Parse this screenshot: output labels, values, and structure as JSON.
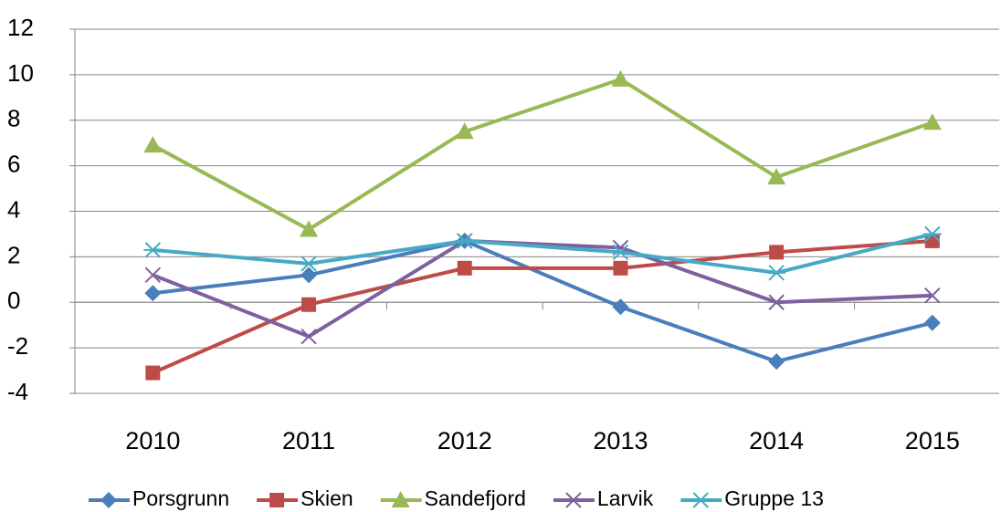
{
  "chart_data": {
    "type": "line",
    "categories": [
      "2010",
      "2011",
      "2012",
      "2013",
      "2014",
      "2015"
    ],
    "series": [
      {
        "name": "Porsgrunn",
        "color": "#4a7ebb",
        "marker": "diamond",
        "values": [
          0.4,
          1.2,
          2.7,
          -0.2,
          -2.6,
          -0.9
        ]
      },
      {
        "name": "Skien",
        "color": "#be4b48",
        "marker": "square",
        "values": [
          -3.1,
          -0.1,
          1.5,
          1.5,
          2.2,
          2.7
        ]
      },
      {
        "name": "Sandefjord",
        "color": "#98b954",
        "marker": "triangle",
        "values": [
          6.9,
          3.2,
          7.5,
          9.8,
          5.5,
          7.9
        ]
      },
      {
        "name": "Larvik",
        "color": "#7d60a0",
        "marker": "x",
        "values": [
          1.2,
          -1.5,
          2.7,
          2.4,
          0.0,
          0.3
        ]
      },
      {
        "name": "Gruppe 13",
        "color": "#46aac5",
        "marker": "star",
        "values": [
          2.3,
          1.7,
          2.7,
          2.2,
          1.3,
          3.0
        ]
      }
    ],
    "ylim": [
      -4,
      12
    ],
    "yticks": [
      -4,
      -2,
      0,
      2,
      4,
      6,
      8,
      10,
      12
    ],
    "grid": true,
    "legend": "bottom"
  }
}
